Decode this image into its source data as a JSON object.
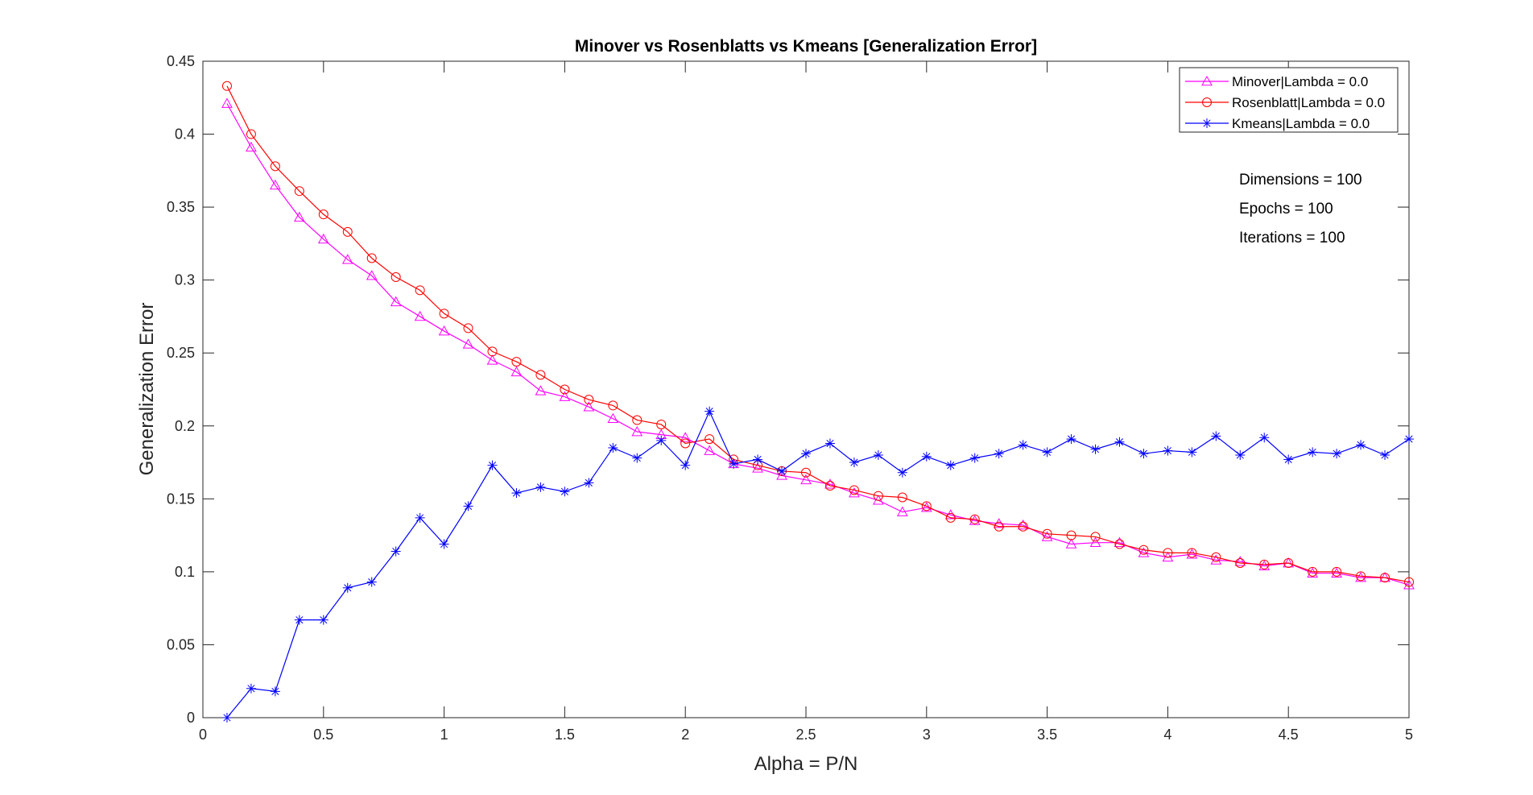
{
  "chart_data": {
    "type": "line",
    "title": "Minover vs Rosenblatts vs Kmeans [Generalization Error]",
    "xlabel": "Alpha = P/N",
    "ylabel": "Generalization Error",
    "xlim": [
      0,
      5
    ],
    "ylim": [
      0,
      0.45
    ],
    "x_ticks": [
      0,
      0.5,
      1,
      1.5,
      2,
      2.5,
      3,
      3.5,
      4,
      4.5,
      5
    ],
    "x_tick_labels": [
      "0",
      "0.5",
      "1",
      "1.5",
      "2",
      "2.5",
      "3",
      "3.5",
      "4",
      "4.5",
      "5"
    ],
    "y_ticks": [
      0,
      0.05,
      0.1,
      0.15,
      0.2,
      0.25,
      0.3,
      0.35,
      0.4,
      0.45
    ],
    "y_tick_labels": [
      "0",
      "0.05",
      "0.1",
      "0.15",
      "0.2",
      "0.25",
      "0.3",
      "0.35",
      "0.4",
      "0.45"
    ],
    "grid": false,
    "legend_position": "top-right",
    "x": [
      0.1,
      0.2,
      0.3,
      0.4,
      0.5,
      0.6,
      0.7,
      0.8,
      0.9,
      1.0,
      1.1,
      1.2,
      1.3,
      1.4,
      1.5,
      1.6,
      1.7,
      1.8,
      1.9,
      2.0,
      2.1,
      2.2,
      2.3,
      2.4,
      2.5,
      2.6,
      2.7,
      2.8,
      2.9,
      3.0,
      3.1,
      3.2,
      3.3,
      3.4,
      3.5,
      3.6,
      3.7,
      3.8,
      3.9,
      4.0,
      4.1,
      4.2,
      4.3,
      4.4,
      4.5,
      4.6,
      4.7,
      4.8,
      4.9,
      5.0
    ],
    "series": [
      {
        "name": "Minover|Lambda = 0.0",
        "color": "#ff00ff",
        "marker": "triangle",
        "values": [
          0.421,
          0.391,
          0.365,
          0.343,
          0.328,
          0.314,
          0.303,
          0.285,
          0.275,
          0.265,
          0.256,
          0.245,
          0.237,
          0.224,
          0.22,
          0.213,
          0.205,
          0.196,
          0.194,
          0.192,
          0.183,
          0.174,
          0.171,
          0.166,
          0.163,
          0.16,
          0.154,
          0.149,
          0.141,
          0.144,
          0.139,
          0.135,
          0.133,
          0.132,
          0.124,
          0.119,
          0.12,
          0.12,
          0.113,
          0.11,
          0.112,
          0.108,
          0.107,
          0.104,
          0.106,
          0.099,
          0.099,
          0.096,
          0.096,
          0.091
        ]
      },
      {
        "name": "Rosenblatt|Lambda = 0.0",
        "color": "#ff0000",
        "marker": "circle",
        "values": [
          0.433,
          0.4,
          0.378,
          0.361,
          0.345,
          0.333,
          0.315,
          0.302,
          0.293,
          0.277,
          0.267,
          0.251,
          0.244,
          0.235,
          0.225,
          0.218,
          0.214,
          0.204,
          0.201,
          0.188,
          0.191,
          0.177,
          0.173,
          0.169,
          0.168,
          0.159,
          0.156,
          0.152,
          0.151,
          0.145,
          0.137,
          0.136,
          0.131,
          0.131,
          0.126,
          0.125,
          0.124,
          0.119,
          0.115,
          0.113,
          0.113,
          0.11,
          0.106,
          0.105,
          0.106,
          0.1,
          0.1,
          0.097,
          0.096,
          0.093
        ]
      },
      {
        "name": "Kmeans|Lambda = 0.0",
        "color": "#0000ff",
        "marker": "star",
        "values": [
          0.0,
          0.02,
          0.018,
          0.067,
          0.067,
          0.089,
          0.093,
          0.114,
          0.137,
          0.119,
          0.145,
          0.173,
          0.154,
          0.158,
          0.155,
          0.161,
          0.185,
          0.178,
          0.19,
          0.173,
          0.21,
          0.174,
          0.177,
          0.169,
          0.181,
          0.188,
          0.175,
          0.18,
          0.168,
          0.179,
          0.173,
          0.178,
          0.181,
          0.187,
          0.182,
          0.191,
          0.184,
          0.189,
          0.181,
          0.183,
          0.182,
          0.193,
          0.18,
          0.192,
          0.177,
          0.182,
          0.181,
          0.187,
          0.18,
          0.191
        ]
      }
    ],
    "annotations": [
      "Dimensions = 100",
      "Epochs = 100",
      "Iterations = 100"
    ]
  }
}
